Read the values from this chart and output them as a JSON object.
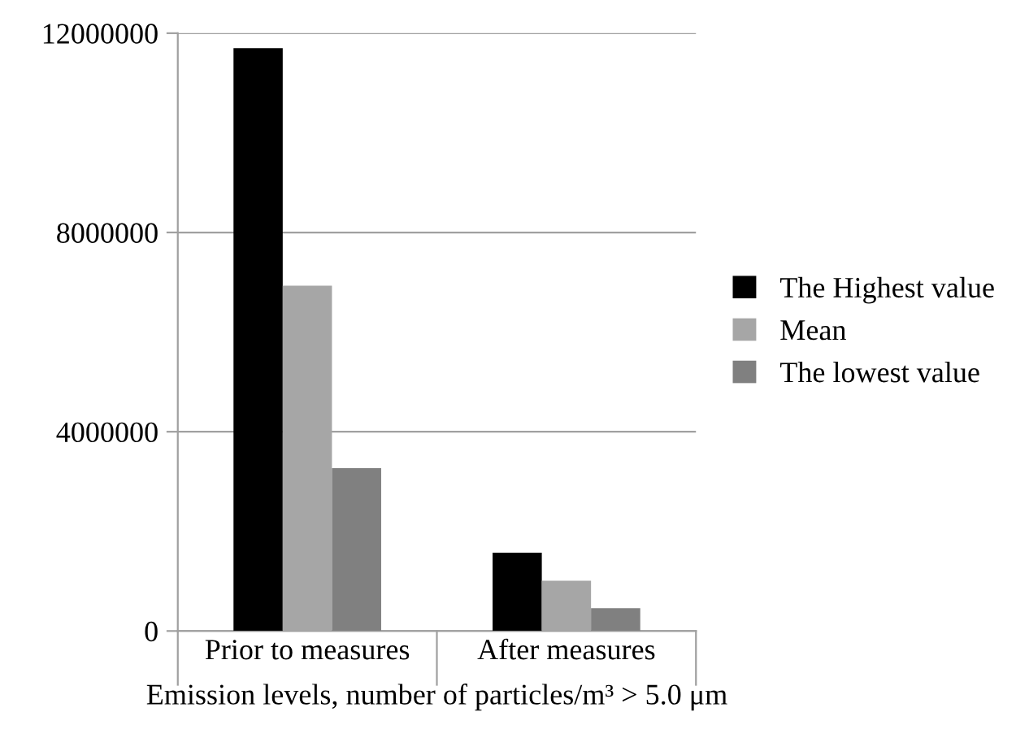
{
  "chart_data": {
    "type": "bar",
    "xlabel": "Emission levels, number of particles/m³ > 5.0 μm",
    "categories": [
      "Prior to measures",
      "After measures"
    ],
    "series": [
      {
        "name": "The Highest value",
        "color": "#000000",
        "values": [
          11700000,
          1570000
        ]
      },
      {
        "name": "Mean",
        "color": "#a6a6a6",
        "values": [
          6930000,
          1010000
        ]
      },
      {
        "name": "The lowest value",
        "color": "#808080",
        "values": [
          3270000,
          460000
        ]
      }
    ],
    "ylim": [
      0,
      12000000
    ],
    "yticks": [
      0,
      4000000,
      8000000,
      12000000
    ],
    "grid": "y",
    "legend": "right"
  }
}
